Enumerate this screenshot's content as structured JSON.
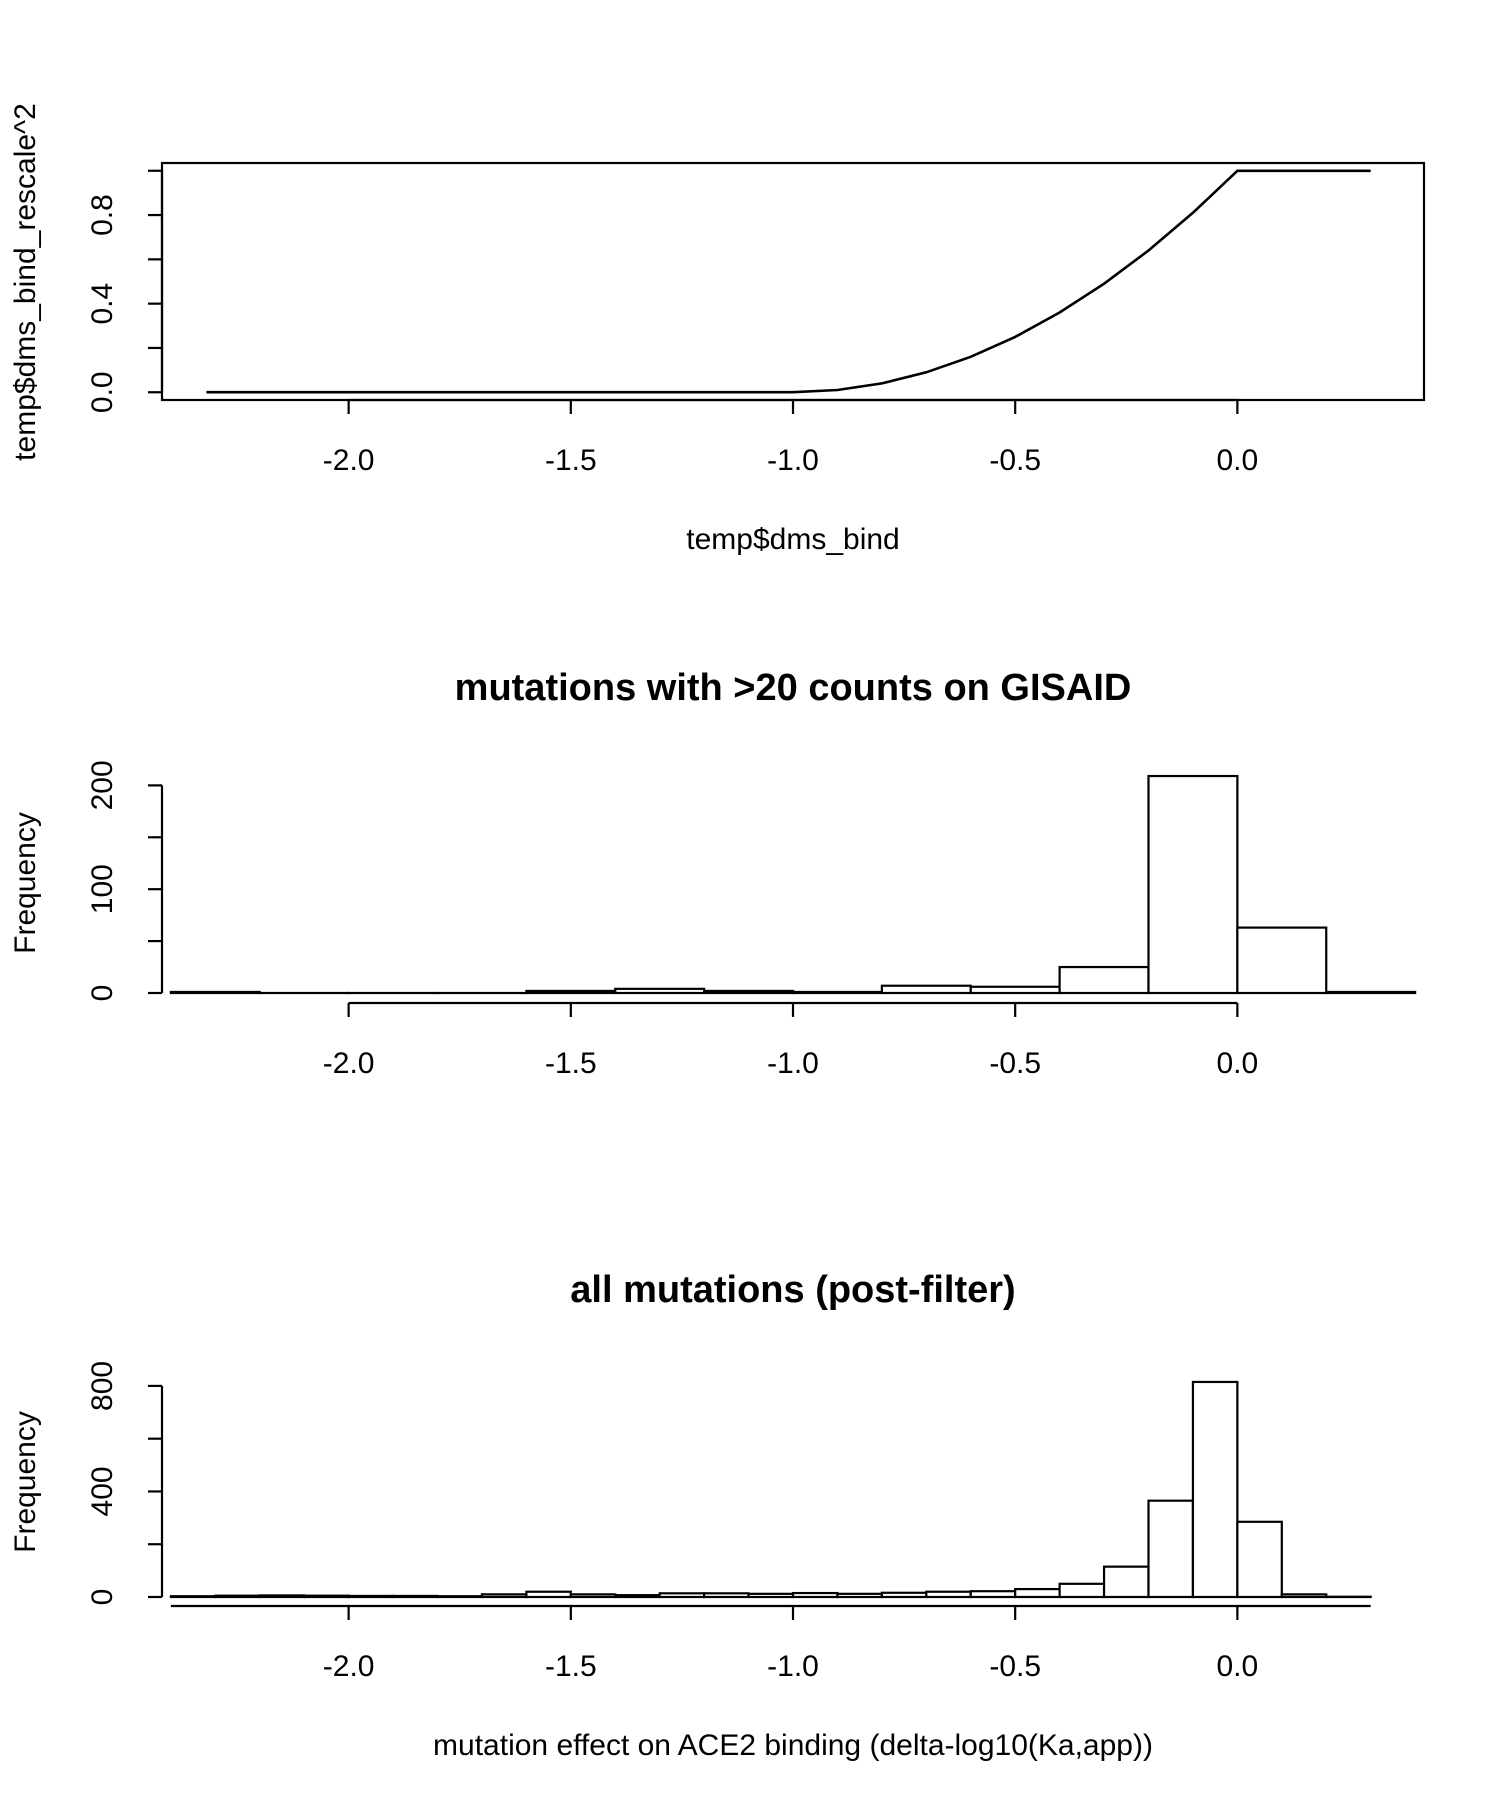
{
  "chart_data": [
    {
      "type": "line",
      "title": "",
      "xlabel": "temp$dms_bind",
      "ylabel": "temp$dms_bind_rescale^2",
      "xlim": [
        -2.42,
        0.42
      ],
      "ylim": [
        -0.035,
        1.035
      ],
      "xticks": [
        -2.0,
        -1.5,
        -1.0,
        -0.5,
        0.0
      ],
      "xtick_labels": [
        "-2.0",
        "-1.5",
        "-1.0",
        "-0.5",
        "0.0"
      ],
      "yticks": [
        0.0,
        0.2,
        0.4,
        0.6,
        0.8,
        1.0
      ],
      "ytick_labels": [
        "0.0",
        "",
        "0.4",
        "",
        "0.8",
        ""
      ],
      "box": true,
      "series": [
        {
          "x": [
            -2.32,
            -1.0,
            -0.9,
            -0.8,
            -0.7,
            -0.6,
            -0.5,
            -0.4,
            -0.3,
            -0.2,
            -0.1,
            0.0,
            0.3
          ],
          "y": [
            0.0,
            0.0,
            0.01,
            0.04,
            0.09,
            0.16,
            0.25,
            0.36,
            0.49,
            0.64,
            0.81,
            1.0,
            1.0
          ]
        }
      ]
    },
    {
      "type": "bar",
      "subtype": "histogram",
      "title": "mutations with >20 counts on GISAID",
      "xlabel": "",
      "ylabel": "Frequency",
      "xlim": [
        -2.42,
        0.42
      ],
      "ylim": [
        0,
        210
      ],
      "xticks": [
        -2.0,
        -1.5,
        -1.0,
        -0.5,
        0.0
      ],
      "xtick_labels": [
        "-2.0",
        "-1.5",
        "-1.0",
        "-0.5",
        "0.0"
      ],
      "xaxis_range": [
        -2.0,
        0.0
      ],
      "yticks": [
        0,
        50,
        100,
        150,
        200
      ],
      "ytick_labels": [
        "0",
        "",
        "100",
        "",
        "200"
      ],
      "bin_edges": [
        -2.4,
        -2.2,
        -2.0,
        -1.8,
        -1.6,
        -1.4,
        -1.2,
        -1.0,
        -0.8,
        -0.6,
        -0.4,
        -0.2,
        0.0,
        0.2,
        0.4
      ],
      "values": [
        1,
        0,
        0,
        0,
        2,
        4,
        2,
        1,
        7,
        6,
        25,
        209,
        63,
        1
      ]
    },
    {
      "type": "bar",
      "subtype": "histogram",
      "title": "all mutations (post-filter)",
      "xlabel": "mutation effect on ACE2 binding (delta-log10(Ka,app))",
      "ylabel": "Frequency",
      "xlim": [
        -2.42,
        0.42
      ],
      "ylim": [
        0,
        830
      ],
      "xticks": [
        -2.0,
        -1.5,
        -1.0,
        -0.5,
        0.0
      ],
      "xtick_labels": [
        "-2.0",
        "-1.5",
        "-1.0",
        "-0.5",
        "0.0"
      ],
      "xaxis_range": [
        -2.4,
        0.3
      ],
      "yticks": [
        0,
        200,
        400,
        600,
        800
      ],
      "ytick_labels": [
        "0",
        "",
        "400",
        "",
        "800"
      ],
      "bin_edges": [
        -2.4,
        -2.3,
        -2.2,
        -2.1,
        -2.0,
        -1.9,
        -1.8,
        -1.7,
        -1.6,
        -1.5,
        -1.4,
        -1.3,
        -1.2,
        -1.1,
        -1.0,
        -0.9,
        -0.8,
        -0.7,
        -0.6,
        -0.5,
        -0.4,
        -0.3,
        -0.2,
        -0.1,
        0.0,
        0.1,
        0.2,
        0.3
      ],
      "values": [
        3,
        5,
        6,
        5,
        4,
        4,
        3,
        10,
        20,
        10,
        7,
        14,
        14,
        12,
        15,
        12,
        16,
        20,
        22,
        30,
        50,
        115,
        365,
        815,
        285,
        10,
        1
      ]
    }
  ]
}
